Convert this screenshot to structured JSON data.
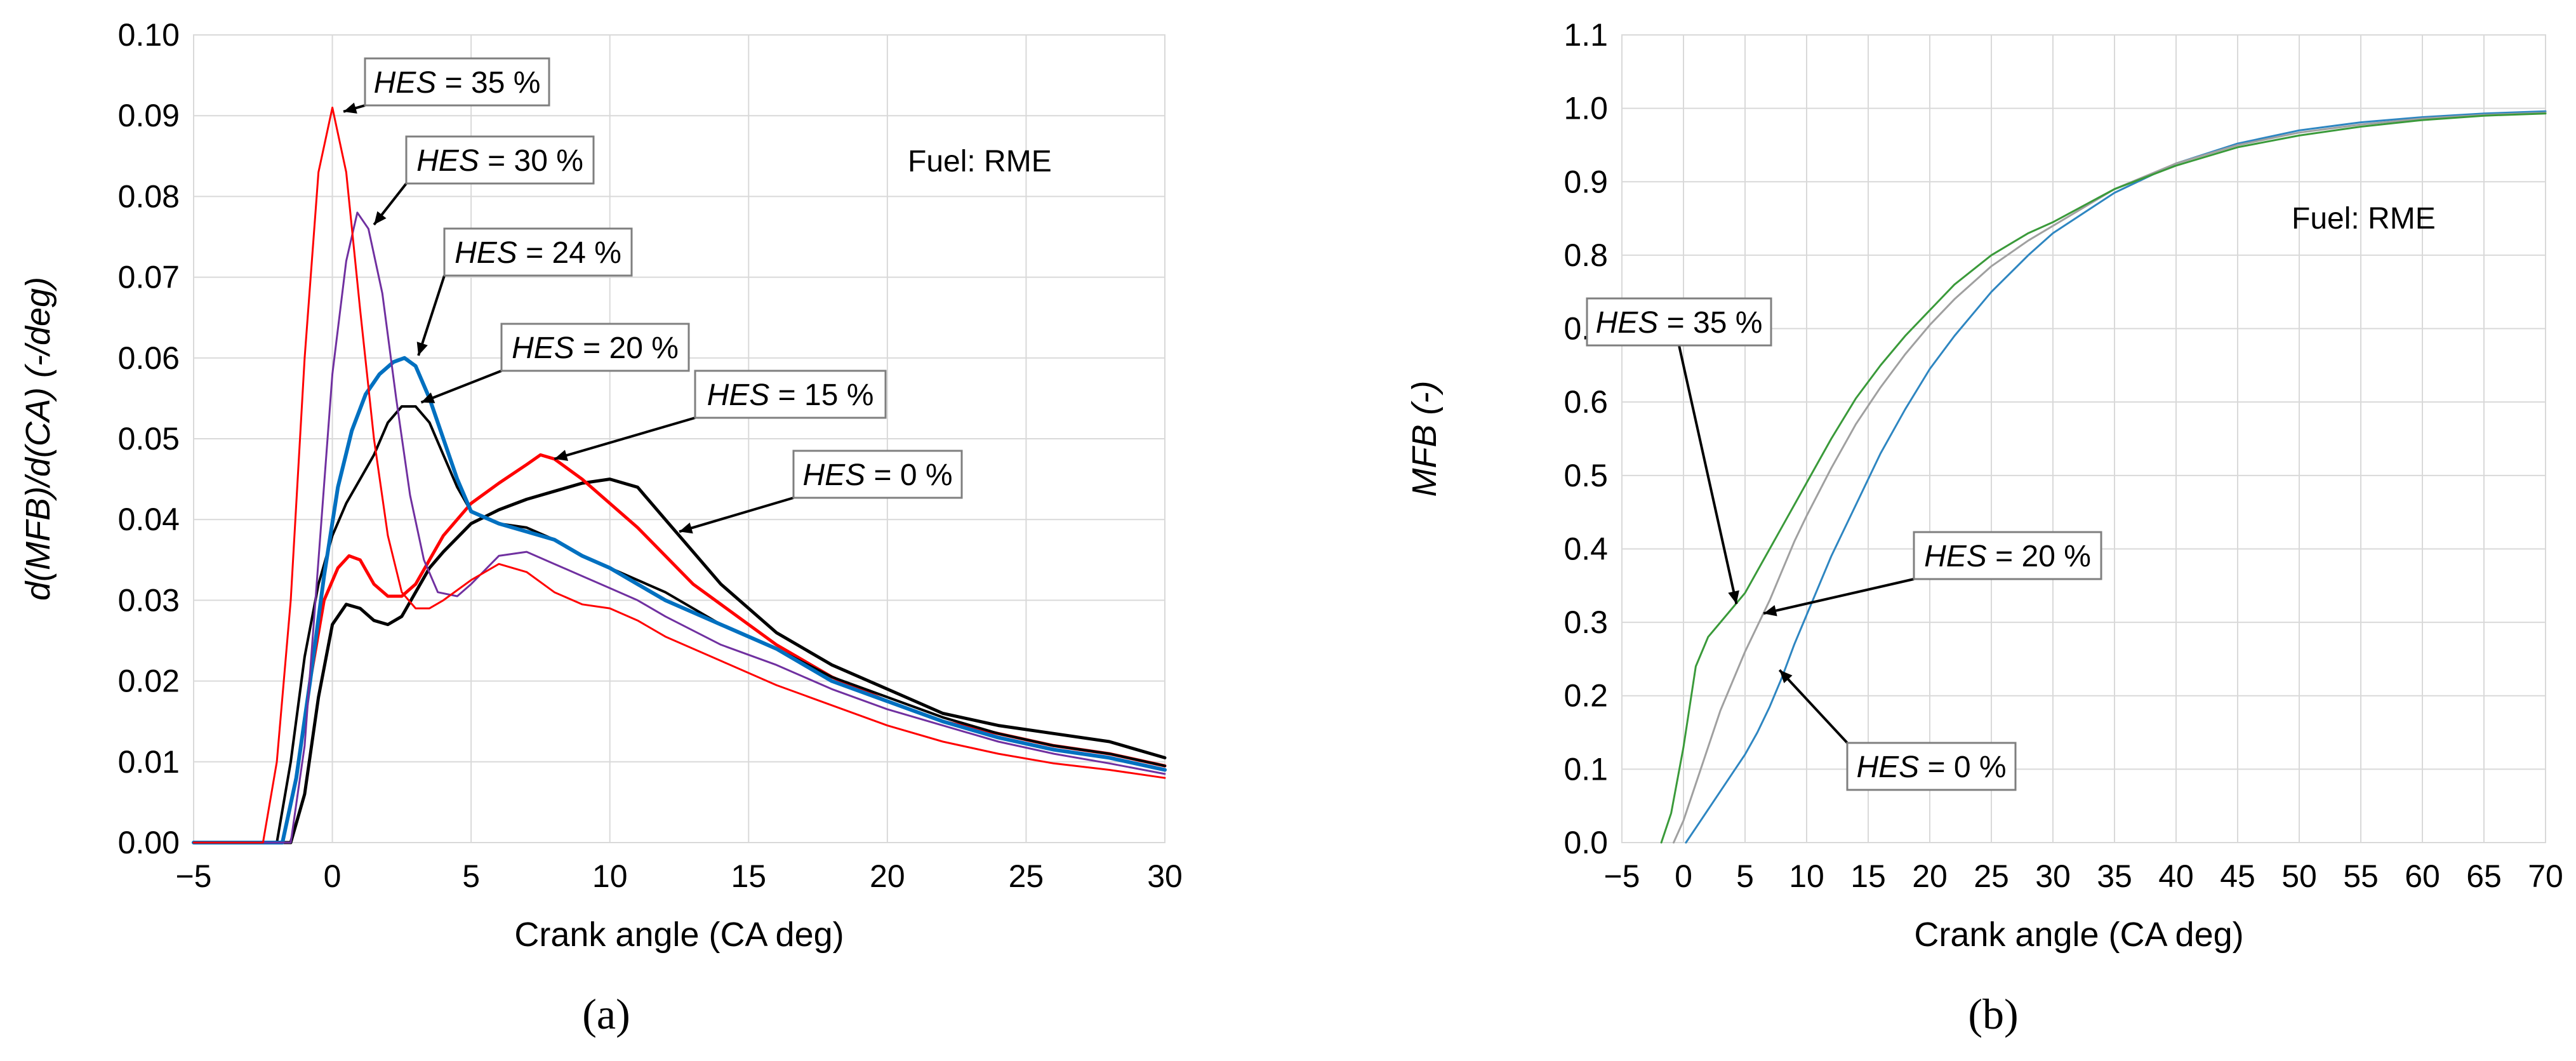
{
  "colors": {
    "black": "#000000",
    "red": "#ff0000",
    "purple": "#7030a0",
    "blue": "#0070c0",
    "gray": "#a0a0a0",
    "green": "#3a9a3a",
    "lightblue": "#2e86c1"
  },
  "chart_data": [
    {
      "id": "a",
      "type": "line",
      "panel_label": "(a)",
      "title": "",
      "xlabel": "Crank angle (CA deg)",
      "ylabel": "d(MFB)/d(CA)  (-/deg)",
      "xlim": [
        -5,
        30
      ],
      "ylim": [
        0,
        0.1
      ],
      "xticks": [
        "−5",
        "0",
        "5",
        "10",
        "15",
        "20",
        "25",
        "30"
      ],
      "xtick_values": [
        -5,
        0,
        5,
        10,
        15,
        20,
        25,
        30
      ],
      "yticks": [
        "0.00",
        "0.01",
        "0.02",
        "0.03",
        "0.04",
        "0.05",
        "0.06",
        "0.07",
        "0.08",
        "0.09",
        "0.10"
      ],
      "ytick_values": [
        0,
        0.01,
        0.02,
        0.03,
        0.04,
        0.05,
        0.06,
        0.07,
        0.08,
        0.09,
        0.1
      ],
      "grid": true,
      "fuel_label": "Fuel: RME",
      "series": [
        {
          "name": "HES = 0 %",
          "color": "#000000",
          "width": 5,
          "x": [
            -5,
            -1.5,
            -1,
            -0.5,
            0,
            0.5,
            1,
            1.5,
            2,
            2.5,
            3,
            3.5,
            4,
            5,
            6,
            7,
            8,
            9,
            10,
            11,
            12,
            13,
            14,
            15,
            16,
            18,
            20,
            22,
            24,
            26,
            28,
            30
          ],
          "y": [
            0,
            0,
            0.006,
            0.018,
            0.027,
            0.0295,
            0.029,
            0.0275,
            0.027,
            0.028,
            0.031,
            0.034,
            0.036,
            0.0395,
            0.0412,
            0.0425,
            0.0435,
            0.0445,
            0.045,
            0.044,
            0.04,
            0.036,
            0.032,
            0.029,
            0.026,
            0.022,
            0.019,
            0.016,
            0.0145,
            0.0135,
            0.0125,
            0.0105
          ]
        },
        {
          "name": "HES = 15 %",
          "color": "#ff0000",
          "width": 5,
          "x": [
            -5,
            -1.8,
            -1.3,
            -0.8,
            -0.3,
            0.2,
            0.6,
            1,
            1.5,
            2,
            2.5,
            3,
            3.5,
            4,
            5,
            6,
            7,
            7.5,
            8,
            9,
            10,
            11,
            12,
            13,
            14,
            15,
            16,
            18,
            20,
            22,
            24,
            26,
            28,
            30
          ],
          "y": [
            0,
            0,
            0.008,
            0.02,
            0.03,
            0.034,
            0.0355,
            0.035,
            0.032,
            0.0305,
            0.0305,
            0.032,
            0.035,
            0.038,
            0.042,
            0.0445,
            0.0468,
            0.048,
            0.0475,
            0.045,
            0.042,
            0.039,
            0.0355,
            0.032,
            0.0295,
            0.027,
            0.0245,
            0.0205,
            0.0175,
            0.015,
            0.0135,
            0.012,
            0.011,
            0.0095
          ]
        },
        {
          "name": "HES = 20 %",
          "color": "#000000",
          "width": 4,
          "x": [
            -5,
            -2,
            -1.5,
            -1,
            -0.5,
            0,
            0.5,
            1,
            1.5,
            2,
            2.5,
            3,
            3.5,
            4,
            4.5,
            5,
            6,
            7,
            8,
            9,
            10,
            11,
            12,
            14,
            16,
            18,
            20,
            22,
            24,
            26,
            28,
            30
          ],
          "y": [
            0,
            0,
            0.01,
            0.023,
            0.032,
            0.038,
            0.042,
            0.045,
            0.048,
            0.052,
            0.054,
            0.054,
            0.052,
            0.048,
            0.044,
            0.041,
            0.0395,
            0.039,
            0.0375,
            0.0355,
            0.034,
            0.0325,
            0.031,
            0.027,
            0.024,
            0.0205,
            0.018,
            0.0155,
            0.0135,
            0.012,
            0.011,
            0.0095
          ]
        },
        {
          "name": "HES = 24 %",
          "color": "#0070c0",
          "width": 6,
          "x": [
            -5,
            -1.8,
            -1.3,
            -0.8,
            -0.3,
            0.2,
            0.7,
            1.2,
            1.7,
            2.2,
            2.6,
            3,
            3.5,
            4,
            4.5,
            5,
            6,
            7,
            8,
            9,
            10,
            11,
            12,
            14,
            16,
            18,
            20,
            22,
            24,
            26,
            28,
            30
          ],
          "y": [
            0,
            0,
            0.008,
            0.02,
            0.033,
            0.044,
            0.051,
            0.0555,
            0.058,
            0.0595,
            0.06,
            0.059,
            0.055,
            0.05,
            0.045,
            0.041,
            0.0395,
            0.0385,
            0.0375,
            0.0355,
            0.034,
            0.032,
            0.03,
            0.027,
            0.024,
            0.02,
            0.0175,
            0.015,
            0.013,
            0.0115,
            0.0105,
            0.009
          ]
        },
        {
          "name": "HES = 30 %",
          "color": "#7030a0",
          "width": 3,
          "x": [
            -5,
            -1.5,
            -1,
            -0.5,
            0,
            0.5,
            0.9,
            1.3,
            1.8,
            2.3,
            2.8,
            3.3,
            3.8,
            4.5,
            5,
            6,
            7,
            8,
            9,
            10,
            11,
            12,
            14,
            16,
            18,
            20,
            22,
            24,
            26,
            28,
            30
          ],
          "y": [
            0,
            0,
            0.012,
            0.035,
            0.058,
            0.072,
            0.078,
            0.076,
            0.068,
            0.055,
            0.043,
            0.035,
            0.031,
            0.0305,
            0.032,
            0.0355,
            0.036,
            0.0345,
            0.033,
            0.0315,
            0.03,
            0.028,
            0.0245,
            0.022,
            0.019,
            0.0165,
            0.0145,
            0.0125,
            0.011,
            0.0098,
            0.0085
          ]
        },
        {
          "name": "HES = 35 %",
          "color": "#ff0000",
          "width": 3,
          "x": [
            -5,
            -2.5,
            -2,
            -1.5,
            -1,
            -0.5,
            0,
            0.5,
            1,
            1.5,
            2,
            2.5,
            3,
            3.5,
            4,
            5,
            6,
            7,
            8,
            9,
            10,
            11,
            12,
            14,
            16,
            18,
            20,
            22,
            24,
            26,
            28,
            30
          ],
          "y": [
            0,
            0,
            0.01,
            0.03,
            0.06,
            0.083,
            0.091,
            0.083,
            0.066,
            0.05,
            0.038,
            0.031,
            0.029,
            0.029,
            0.03,
            0.0325,
            0.0345,
            0.0335,
            0.031,
            0.0295,
            0.029,
            0.0275,
            0.0255,
            0.0225,
            0.0195,
            0.017,
            0.0145,
            0.0125,
            0.011,
            0.0098,
            0.009,
            0.008
          ]
        }
      ],
      "annotations": [
        {
          "prefix": "HES",
          "suffix": " = 35 %",
          "target_x": 0.4,
          "target_y": 0.0905
        },
        {
          "prefix": "HES",
          "suffix": " = 30 %",
          "target_x": 1.5,
          "target_y": 0.0765
        },
        {
          "prefix": "HES",
          "suffix": " = 24 %",
          "target_x": 3.1,
          "target_y": 0.0603
        },
        {
          "prefix": "HES",
          "suffix": " = 20 %",
          "target_x": 3.2,
          "target_y": 0.0545
        },
        {
          "prefix": "HES",
          "suffix": " = 15 %",
          "target_x": 8.0,
          "target_y": 0.0475
        },
        {
          "prefix": "HES",
          "suffix": " = 0 %",
          "target_x": 12.5,
          "target_y": 0.0385
        }
      ]
    },
    {
      "id": "b",
      "type": "line",
      "panel_label": "(b)",
      "title": "",
      "xlabel": "Crank angle (CA deg)",
      "ylabel": "MFB  (-)",
      "xlim": [
        -5,
        70
      ],
      "ylim": [
        0,
        1.1
      ],
      "xticks": [
        "−5",
        "0",
        "5",
        "10",
        "15",
        "20",
        "25",
        "30",
        "35",
        "40",
        "45",
        "50",
        "55",
        "60",
        "65",
        "70"
      ],
      "xtick_values": [
        -5,
        0,
        5,
        10,
        15,
        20,
        25,
        30,
        35,
        40,
        45,
        50,
        55,
        60,
        65,
        70
      ],
      "yticks": [
        "0.0",
        "0.1",
        "0.2",
        "0.3",
        "0.4",
        "0.5",
        "0.6",
        "0.7",
        "0.8",
        "0.9",
        "1.0",
        "1.1"
      ],
      "ytick_values": [
        0,
        0.1,
        0.2,
        0.3,
        0.4,
        0.5,
        0.6,
        0.7,
        0.8,
        0.9,
        1.0,
        1.1
      ],
      "grid": true,
      "fuel_label": "Fuel: RME",
      "series": [
        {
          "name": "HES = 0 %",
          "color": "#2e86c1",
          "width": 3,
          "x": [
            0.2,
            1,
            2,
            3,
            4,
            5,
            6,
            7,
            8,
            9,
            10,
            12,
            14,
            16,
            18,
            20,
            22,
            25,
            28,
            30,
            35,
            40,
            45,
            50,
            55,
            60,
            65,
            70
          ],
          "y": [
            0,
            0.02,
            0.045,
            0.07,
            0.095,
            0.12,
            0.15,
            0.185,
            0.225,
            0.27,
            0.31,
            0.39,
            0.46,
            0.53,
            0.59,
            0.645,
            0.69,
            0.75,
            0.8,
            0.83,
            0.885,
            0.925,
            0.952,
            0.97,
            0.981,
            0.988,
            0.993,
            0.996
          ]
        },
        {
          "name": "HES = 20 %",
          "color": "#a0a0a0",
          "width": 3,
          "x": [
            -0.8,
            0,
            1,
            2,
            3,
            4,
            5,
            6,
            7,
            8,
            9,
            10,
            12,
            14,
            16,
            18,
            20,
            22,
            25,
            28,
            30,
            35,
            40,
            45,
            50,
            55,
            60,
            65,
            70
          ],
          "y": [
            0,
            0.03,
            0.08,
            0.13,
            0.18,
            0.22,
            0.26,
            0.295,
            0.33,
            0.37,
            0.41,
            0.445,
            0.51,
            0.57,
            0.62,
            0.665,
            0.705,
            0.74,
            0.785,
            0.82,
            0.84,
            0.89,
            0.925,
            0.95,
            0.967,
            0.978,
            0.986,
            0.991,
            0.994
          ]
        },
        {
          "name": "HES = 35 %",
          "color": "#3a9a3a",
          "width": 3,
          "x": [
            -1.8,
            -1,
            0,
            1,
            2,
            3,
            4,
            5,
            6,
            7,
            8,
            9,
            10,
            12,
            14,
            16,
            18,
            20,
            22,
            25,
            28,
            30,
            35,
            40,
            45,
            50,
            55,
            60,
            65,
            70
          ],
          "y": [
            0,
            0.04,
            0.13,
            0.24,
            0.28,
            0.3,
            0.32,
            0.34,
            0.37,
            0.4,
            0.43,
            0.46,
            0.49,
            0.55,
            0.605,
            0.65,
            0.69,
            0.725,
            0.76,
            0.8,
            0.83,
            0.845,
            0.89,
            0.922,
            0.947,
            0.963,
            0.975,
            0.984,
            0.99,
            0.993
          ]
        }
      ],
      "annotations": [
        {
          "prefix": "HES",
          "suffix": " = 35 %",
          "target_x": 4.3,
          "target_y": 0.325
        },
        {
          "prefix": "HES",
          "suffix": " = 20 %",
          "target_x": 6.5,
          "target_y": 0.312
        },
        {
          "prefix": "HES",
          "suffix": " = 0 %",
          "target_x": 7.8,
          "target_y": 0.235
        }
      ]
    }
  ]
}
